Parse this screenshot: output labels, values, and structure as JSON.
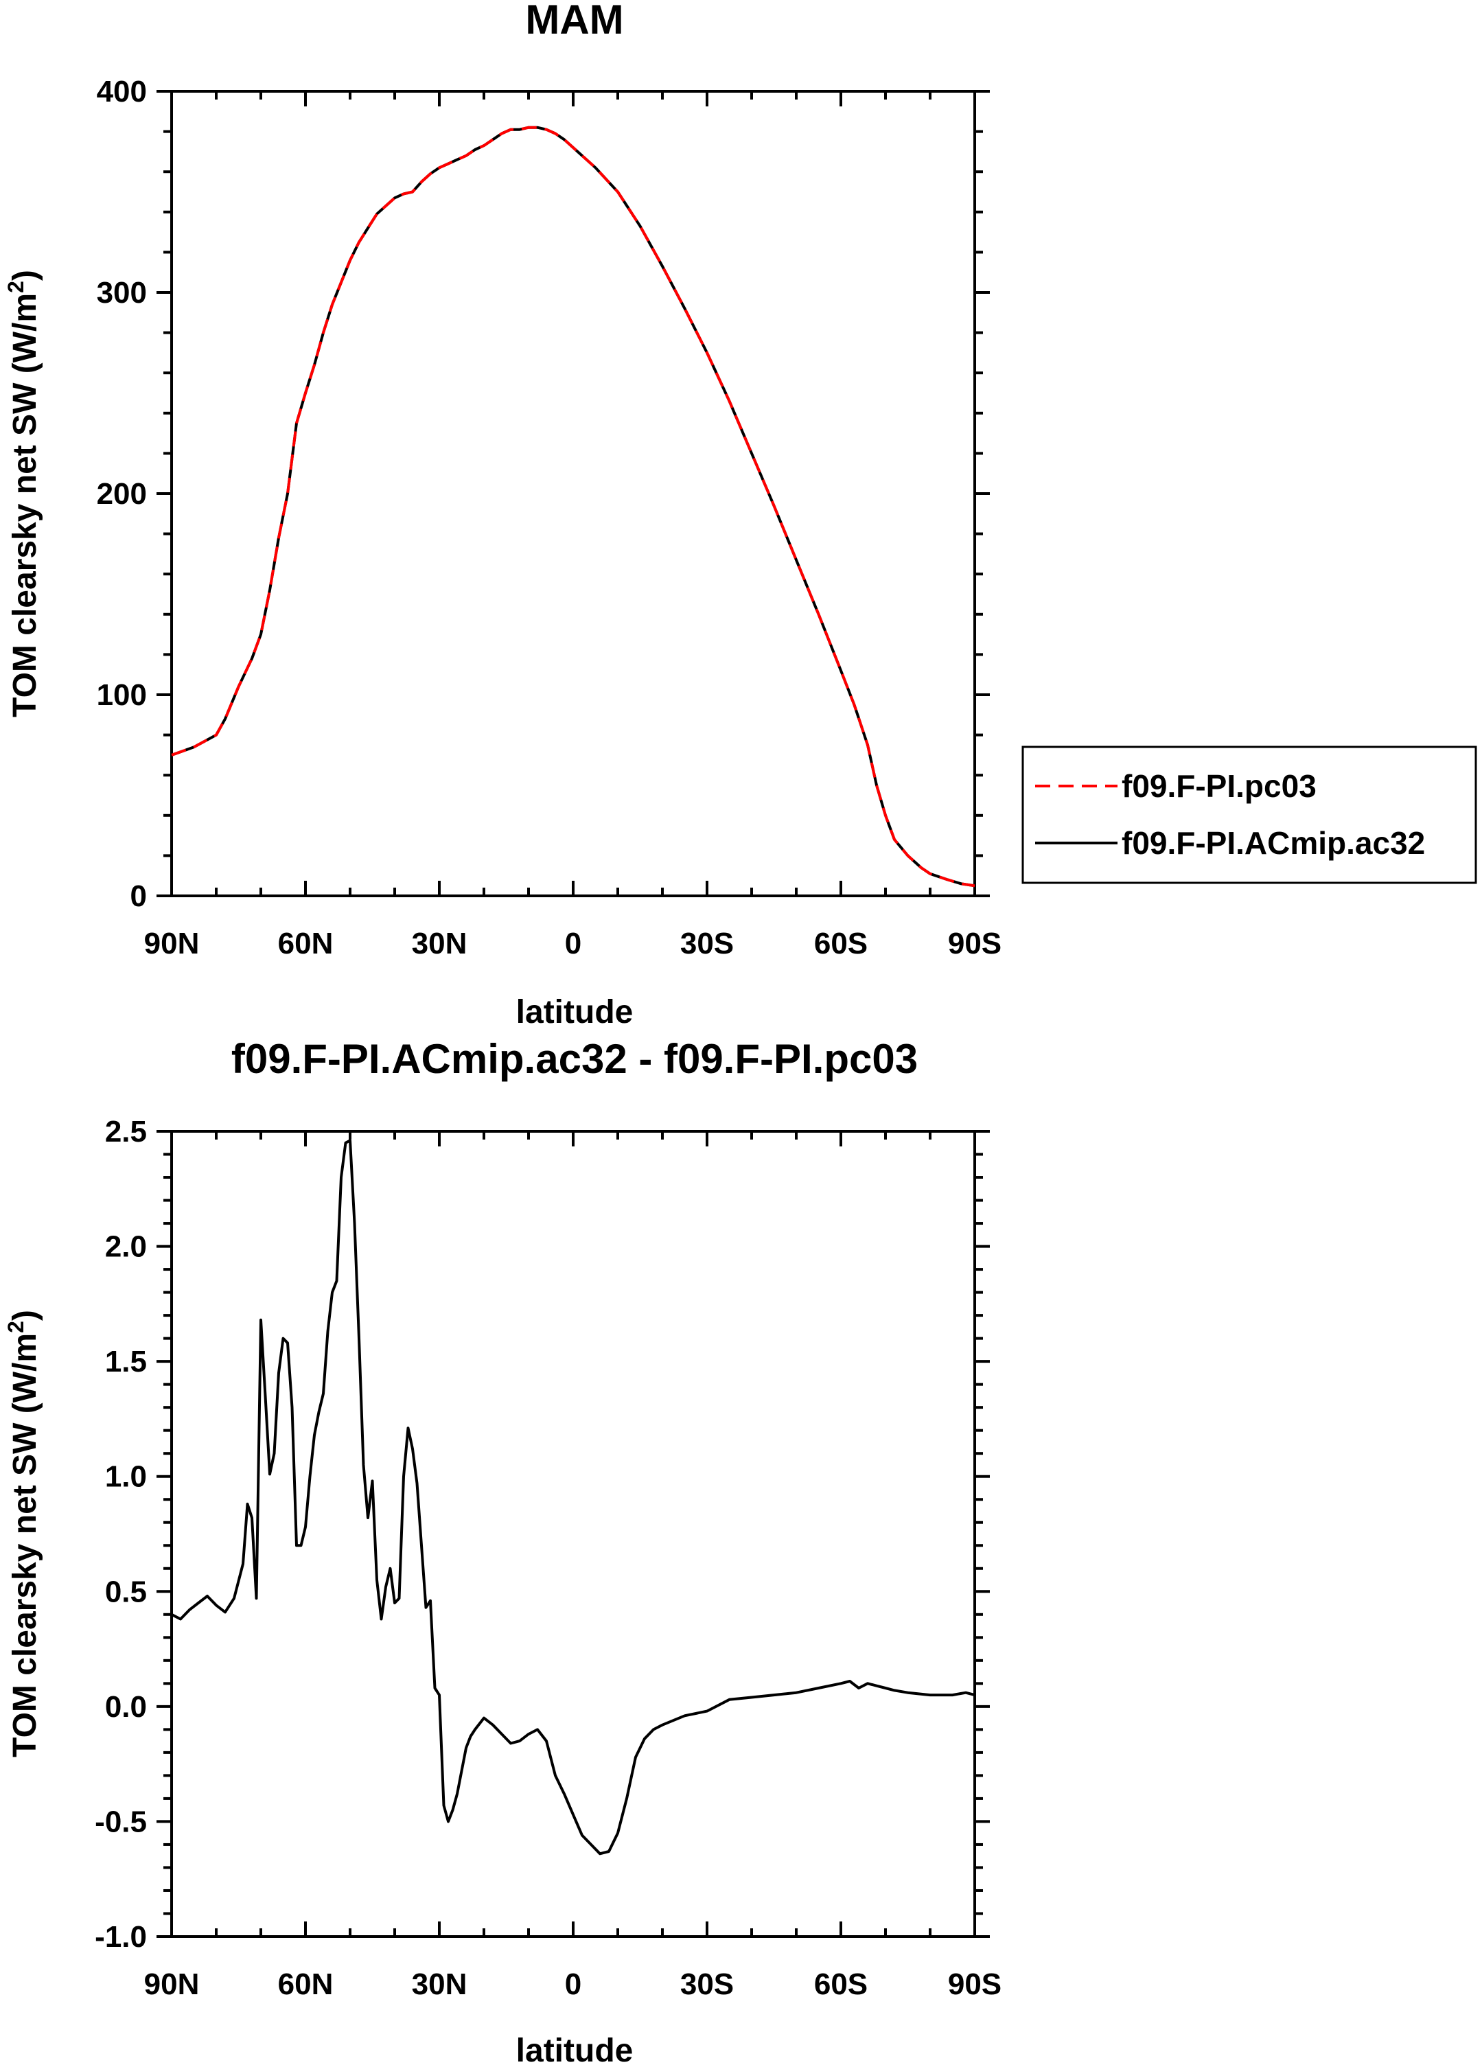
{
  "chart_data": [
    {
      "type": "line",
      "title": "MAM",
      "xlabel": "latitude",
      "ylabel_main": "TOM clearsky net SW (W/m",
      "ylabel_sup": "2",
      "ylabel_close": ")",
      "xlim": [
        90,
        -90
      ],
      "ylim": [
        0,
        400
      ],
      "xticks": [
        90,
        60,
        30,
        0,
        -30,
        -60,
        -90
      ],
      "xtick_labels": [
        "90N",
        "60N",
        "30N",
        "0",
        "30S",
        "60S",
        "90S"
      ],
      "yticks": [
        0,
        100,
        200,
        300,
        400
      ],
      "ytick_labels": [
        "0",
        "100",
        "200",
        "300",
        "400"
      ],
      "legend_position": "right",
      "x": [
        90,
        85,
        80,
        78,
        75,
        72,
        70,
        68,
        66,
        64,
        62,
        60,
        58,
        56,
        54,
        52,
        50,
        48,
        46,
        44,
        42,
        40,
        38,
        36,
        34,
        32,
        30,
        28,
        26,
        24,
        22,
        20,
        18,
        16,
        14,
        12,
        10,
        8,
        6,
        4,
        2,
        0,
        -5,
        -10,
        -15,
        -20,
        -25,
        -30,
        -35,
        -40,
        -45,
        -50,
        -55,
        -60,
        -63,
        -66,
        -68,
        -70,
        -72,
        -75,
        -78,
        -80,
        -84,
        -87,
        -90
      ],
      "series": [
        {
          "name": "f09.F-PI.pc03",
          "color": "#ff0000",
          "dash": true,
          "values": [
            70,
            74,
            80,
            88,
            104,
            118,
            130,
            152,
            178,
            200,
            235,
            250,
            264,
            280,
            294,
            305,
            316,
            325,
            332,
            339,
            343,
            347,
            349,
            350,
            355,
            359,
            362,
            364,
            366,
            368,
            371,
            373,
            376,
            379,
            381,
            381,
            382,
            382,
            381,
            379,
            376,
            372,
            362,
            350,
            333,
            313,
            292,
            270,
            246,
            220,
            194,
            167,
            140,
            112,
            95,
            75,
            55,
            40,
            28,
            20,
            14,
            11,
            8,
            6,
            5
          ]
        },
        {
          "name": "f09.F-PI.ACmip.ac32",
          "color": "#000000",
          "dash": false,
          "values": [
            70,
            74,
            80,
            88,
            104,
            118,
            130,
            152,
            178,
            200,
            235,
            250,
            264,
            280,
            294,
            305,
            316,
            325,
            332,
            339,
            343,
            347,
            349,
            350,
            355,
            359,
            362,
            364,
            366,
            368,
            371,
            373,
            376,
            379,
            381,
            381,
            382,
            382,
            381,
            379,
            376,
            372,
            362,
            350,
            333,
            313,
            292,
            270,
            246,
            220,
            194,
            167,
            140,
            112,
            95,
            75,
            55,
            40,
            28,
            20,
            14,
            11,
            8,
            6,
            5
          ]
        }
      ]
    },
    {
      "type": "line",
      "title": "f09.F-PI.ACmip.ac32 - f09.F-PI.pc03",
      "xlabel": "latitude",
      "ylabel_main": "TOM clearsky net SW (W/m",
      "ylabel_sup": "2",
      "ylabel_close": ")",
      "xlim": [
        90,
        -90
      ],
      "ylim": [
        -1.0,
        2.5
      ],
      "xticks": [
        90,
        60,
        30,
        0,
        -30,
        -60,
        -90
      ],
      "xtick_labels": [
        "90N",
        "60N",
        "30N",
        "0",
        "30S",
        "60S",
        "90S"
      ],
      "yticks": [
        -1.0,
        -0.5,
        0.0,
        0.5,
        1.0,
        1.5,
        2.0,
        2.5
      ],
      "ytick_labels": [
        "-1.0",
        "-0.5",
        "0.0",
        "0.5",
        "1.0",
        "1.5",
        "2.0",
        "2.5"
      ],
      "x": [
        90,
        88,
        86,
        84,
        82,
        80,
        78,
        76,
        74,
        73,
        72,
        71,
        70,
        69,
        68,
        67,
        66,
        65,
        64,
        63,
        62,
        61,
        60,
        59,
        58,
        57,
        56,
        55,
        54,
        53,
        52,
        51,
        50,
        49,
        48,
        47,
        46,
        45,
        44,
        43,
        42,
        41,
        40,
        39,
        38,
        37,
        36,
        35,
        34,
        33,
        32,
        31,
        30,
        29,
        28,
        27,
        26,
        25,
        24,
        23,
        22,
        20,
        18,
        16,
        14,
        12,
        10,
        8,
        6,
        4,
        2,
        0,
        -2,
        -4,
        -6,
        -8,
        -10,
        -12,
        -14,
        -16,
        -18,
        -20,
        -25,
        -30,
        -35,
        -40,
        -45,
        -50,
        -55,
        -60,
        -62,
        -64,
        -66,
        -68,
        -70,
        -72,
        -75,
        -80,
        -85,
        -88,
        -90
      ],
      "series": [
        {
          "name": "",
          "color": "#000000",
          "dash": false,
          "values": [
            0.4,
            0.38,
            0.42,
            0.45,
            0.48,
            0.44,
            0.41,
            0.47,
            0.62,
            0.88,
            0.82,
            0.47,
            1.68,
            1.35,
            1.01,
            1.1,
            1.45,
            1.6,
            1.58,
            1.3,
            0.7,
            0.7,
            0.78,
            1.0,
            1.18,
            1.28,
            1.36,
            1.63,
            1.8,
            1.85,
            2.3,
            2.45,
            2.46,
            2.1,
            1.6,
            1.05,
            0.82,
            0.98,
            0.55,
            0.38,
            0.52,
            0.6,
            0.45,
            0.47,
            1.0,
            1.21,
            1.12,
            0.97,
            0.7,
            0.43,
            0.46,
            0.08,
            0.05,
            -0.43,
            -0.5,
            -0.45,
            -0.38,
            -0.28,
            -0.18,
            -0.13,
            -0.1,
            -0.05,
            -0.08,
            -0.12,
            -0.16,
            -0.15,
            -0.12,
            -0.1,
            -0.15,
            -0.3,
            -0.38,
            -0.47,
            -0.56,
            -0.6,
            -0.64,
            -0.63,
            -0.55,
            -0.4,
            -0.22,
            -0.14,
            -0.1,
            -0.08,
            -0.04,
            -0.02,
            0.03,
            0.04,
            0.05,
            0.06,
            0.08,
            0.1,
            0.11,
            0.08,
            0.1,
            0.09,
            0.08,
            0.07,
            0.06,
            0.05,
            0.05,
            0.06,
            0.05
          ]
        }
      ]
    }
  ]
}
